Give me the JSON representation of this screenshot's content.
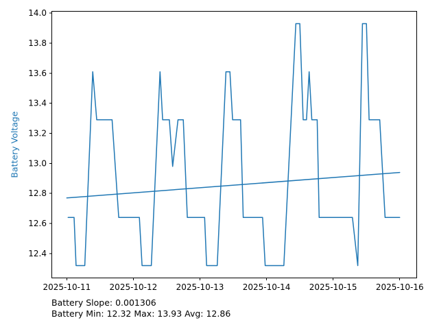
{
  "figure": {
    "background": "#ffffff",
    "footer_lines": [
      "Battery Slope: 0.001306",
      "Battery Min: 12.32 Max: 13.93 Avg: 12.86"
    ]
  },
  "chart_data": {
    "type": "line",
    "title": "",
    "xlabel": "",
    "ylabel": "Battery Voltage",
    "ylabel_color": "#1f77b4",
    "line_color": "#1f77b4",
    "trend_color": "#1f77b4",
    "axis_color": "#000000",
    "grid": false,
    "legend": "none",
    "x_unit": "days since 2025-10-11 00:00",
    "x_tick_labels": [
      "2025-10-11",
      "2025-10-12",
      "2025-10-13",
      "2025-10-14",
      "2025-10-15",
      "2025-10-16"
    ],
    "x_tick_positions_days": [
      0,
      1,
      2,
      3,
      4,
      5
    ],
    "y_tick_labels": [
      "12.4",
      "12.6",
      "12.8",
      "13.0",
      "13.2",
      "13.4",
      "13.6",
      "13.8",
      "14.0"
    ],
    "ylim": [
      12.24,
      14.01
    ],
    "xlim_days": [
      -0.22,
      5.25
    ],
    "stats": {
      "slope": 0.001306,
      "min": 12.32,
      "max": 13.93,
      "avg": 12.86
    },
    "series": [
      {
        "name": "battery_voltage",
        "points": [
          [
            0.02,
            12.64
          ],
          [
            0.11,
            12.64
          ],
          [
            0.14,
            12.32
          ],
          [
            0.27,
            12.32
          ],
          [
            0.39,
            13.61
          ],
          [
            0.45,
            13.29
          ],
          [
            0.68,
            13.29
          ],
          [
            0.78,
            12.64
          ],
          [
            1.09,
            12.64
          ],
          [
            1.13,
            12.32
          ],
          [
            1.27,
            12.32
          ],
          [
            1.4,
            13.61
          ],
          [
            1.44,
            13.29
          ],
          [
            1.54,
            13.29
          ],
          [
            1.59,
            12.98
          ],
          [
            1.67,
            13.29
          ],
          [
            1.75,
            13.29
          ],
          [
            1.81,
            12.64
          ],
          [
            2.07,
            12.64
          ],
          [
            2.1,
            12.32
          ],
          [
            2.26,
            12.32
          ],
          [
            2.39,
            13.61
          ],
          [
            2.45,
            13.61
          ],
          [
            2.49,
            13.29
          ],
          [
            2.61,
            13.29
          ],
          [
            2.65,
            12.64
          ],
          [
            2.94,
            12.64
          ],
          [
            2.98,
            12.32
          ],
          [
            3.26,
            12.32
          ],
          [
            3.44,
            13.93
          ],
          [
            3.5,
            13.93
          ],
          [
            3.55,
            13.29
          ],
          [
            3.6,
            13.29
          ],
          [
            3.64,
            13.61
          ],
          [
            3.68,
            13.29
          ],
          [
            3.76,
            13.29
          ],
          [
            3.79,
            12.64
          ],
          [
            4.29,
            12.64
          ],
          [
            4.37,
            12.32
          ],
          [
            4.44,
            13.93
          ],
          [
            4.5,
            13.93
          ],
          [
            4.54,
            13.29
          ],
          [
            4.7,
            13.29
          ],
          [
            4.78,
            12.64
          ],
          [
            5.0,
            12.64
          ]
        ]
      },
      {
        "name": "trend",
        "points": [
          [
            0.0,
            12.77
          ],
          [
            5.0,
            12.94
          ]
        ]
      }
    ]
  }
}
